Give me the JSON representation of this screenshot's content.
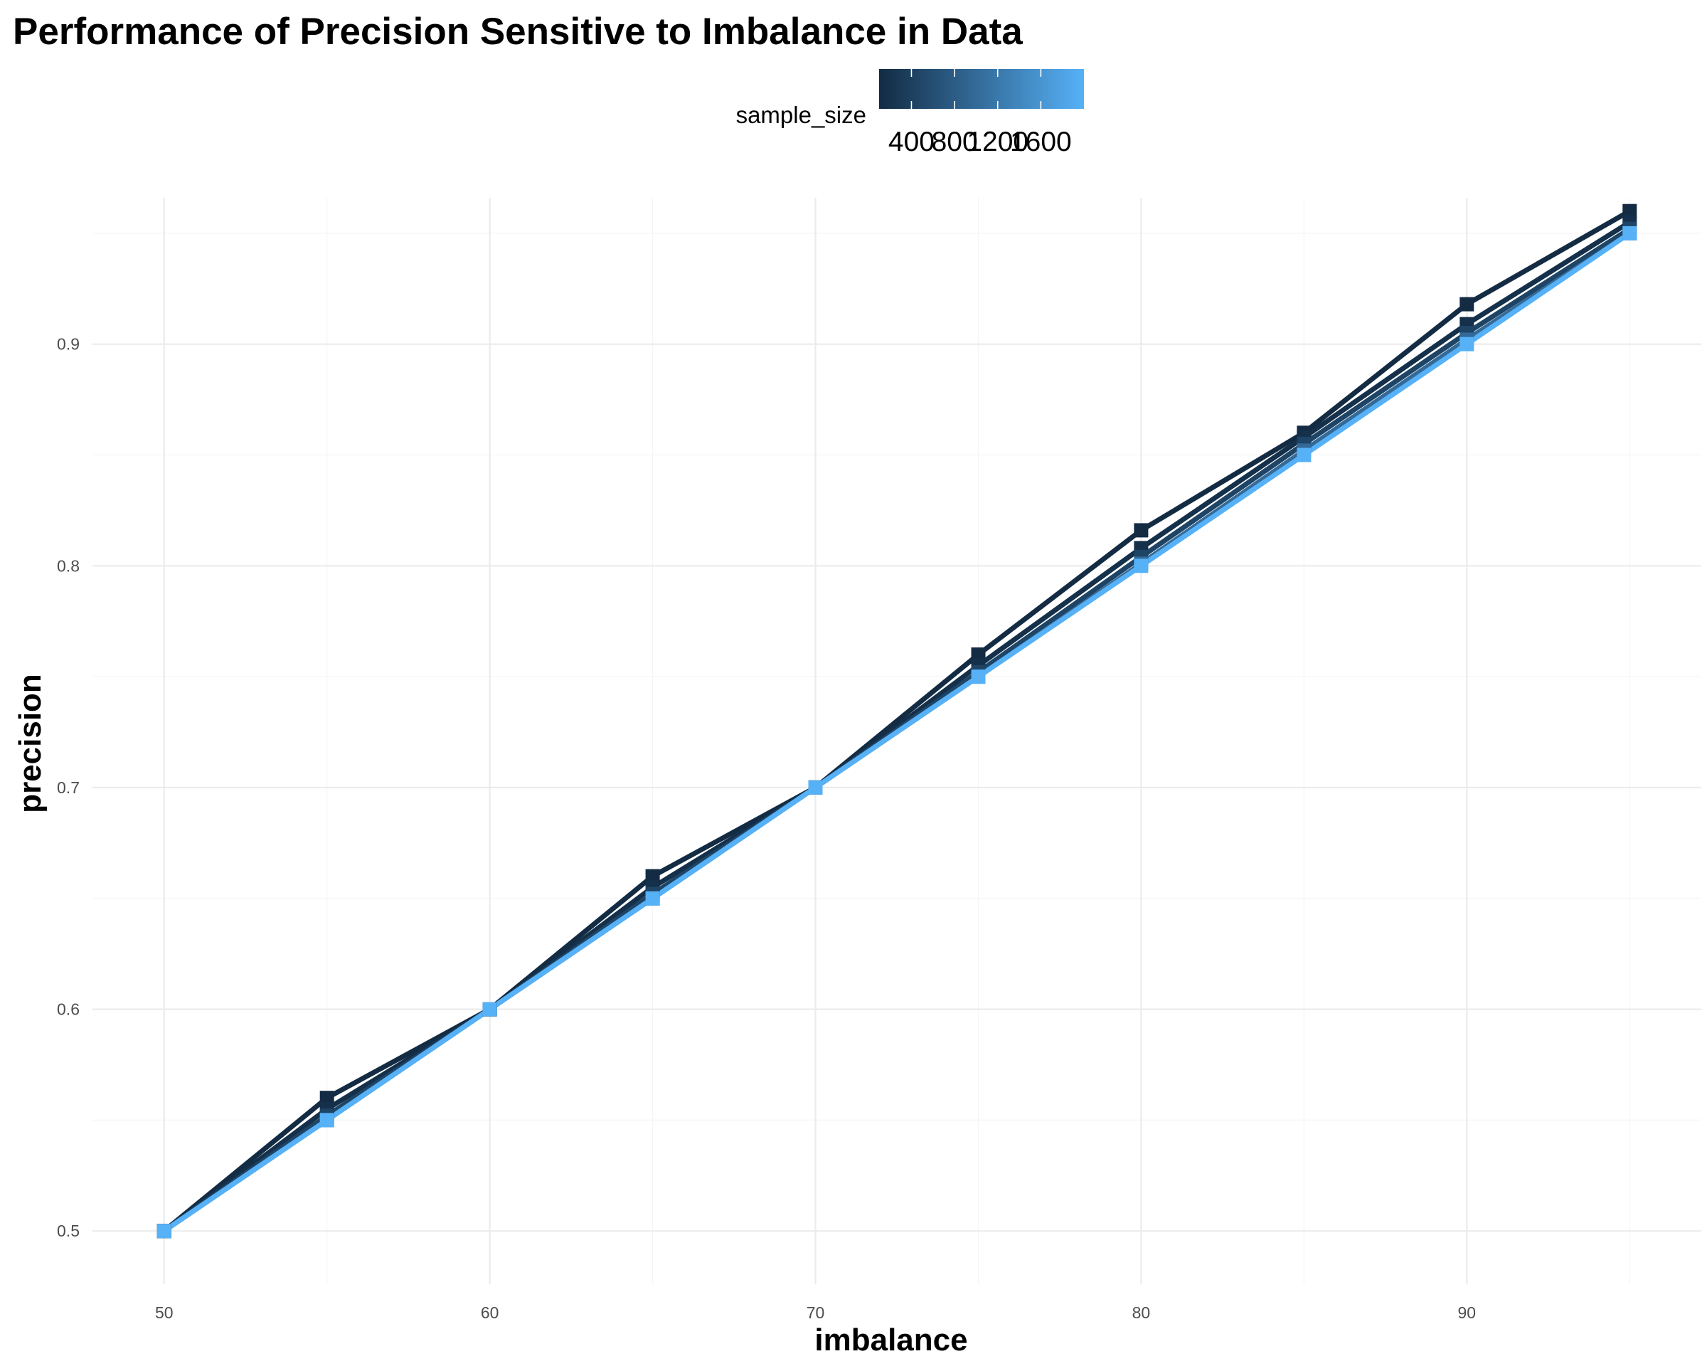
{
  "chart_data": {
    "type": "line",
    "title": "Performance of Precision Sensitive to Imbalance in Data",
    "xlabel": "imbalance",
    "ylabel": "precision",
    "x": [
      50,
      55,
      60,
      65,
      70,
      75,
      80,
      85,
      90,
      95
    ],
    "xlim": [
      47.8,
      97.2
    ],
    "ylim": [
      0.476,
      0.966
    ],
    "x_ticks": [
      50,
      60,
      70,
      80,
      90
    ],
    "y_ticks": [
      0.5,
      0.6,
      0.7,
      0.8,
      0.9
    ],
    "x_tick_labels": [
      "50",
      "60",
      "70",
      "80",
      "90"
    ],
    "y_tick_labels": [
      "0.5",
      "0.6",
      "0.7",
      "0.8",
      "0.9"
    ],
    "grid": true,
    "legend": {
      "title": "sample_size",
      "type": "colorbar",
      "position": "top",
      "range": [
        100,
        2000
      ],
      "breaks": [
        400,
        800,
        1200,
        1600
      ],
      "break_labels": [
        "400",
        "800",
        "1200",
        "1600"
      ],
      "color_low": "#132B43",
      "color_high": "#56B1F7"
    },
    "series": [
      {
        "sample_size": 100,
        "color": "#132B43",
        "values": [
          0.5,
          0.56,
          0.6,
          0.66,
          0.7,
          0.76,
          0.816,
          0.86,
          0.918,
          0.96
        ]
      },
      {
        "sample_size": 200,
        "color": "#15304A",
        "values": [
          0.5,
          0.555,
          0.6,
          0.655,
          0.7,
          0.755,
          0.808,
          0.858,
          0.909,
          0.955
        ]
      },
      {
        "sample_size": 500,
        "color": "#1E4466",
        "values": [
          0.5,
          0.552,
          0.6,
          0.652,
          0.7,
          0.752,
          0.804,
          0.855,
          0.905,
          0.952
        ]
      },
      {
        "sample_size": 1000,
        "color": "#336A98",
        "values": [
          0.5,
          0.55,
          0.6,
          0.65,
          0.7,
          0.75,
          0.801,
          0.852,
          0.902,
          0.95
        ]
      },
      {
        "sample_size": 2000,
        "color": "#56B1F7",
        "values": [
          0.5,
          0.55,
          0.6,
          0.65,
          0.7,
          0.75,
          0.8,
          0.85,
          0.9,
          0.95
        ]
      }
    ]
  }
}
